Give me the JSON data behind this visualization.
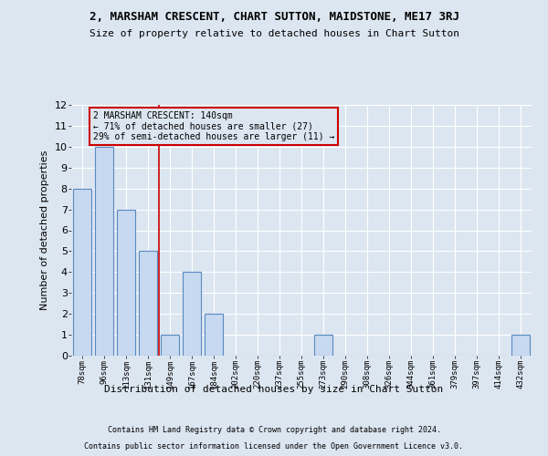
{
  "title": "2, MARSHAM CRESCENT, CHART SUTTON, MAIDSTONE, ME17 3RJ",
  "subtitle": "Size of property relative to detached houses in Chart Sutton",
  "xlabel": "Distribution of detached houses by size in Chart Sutton",
  "ylabel": "Number of detached properties",
  "footer_line1": "Contains HM Land Registry data © Crown copyright and database right 2024.",
  "footer_line2": "Contains public sector information licensed under the Open Government Licence v3.0.",
  "categories": [
    "78sqm",
    "96sqm",
    "113sqm",
    "131sqm",
    "149sqm",
    "167sqm",
    "184sqm",
    "202sqm",
    "220sqm",
    "237sqm",
    "255sqm",
    "273sqm",
    "290sqm",
    "308sqm",
    "326sqm",
    "344sqm",
    "361sqm",
    "379sqm",
    "397sqm",
    "414sqm",
    "432sqm"
  ],
  "values": [
    8,
    10,
    7,
    5,
    1,
    4,
    2,
    0,
    0,
    0,
    0,
    1,
    0,
    0,
    0,
    0,
    0,
    0,
    0,
    0,
    1
  ],
  "bar_color": "#c6d9f0",
  "bar_edge_color": "#5a8abf",
  "background_color": "#dce6f1",
  "grid_color": "#ffffff",
  "annotation_box_text_line1": "2 MARSHAM CRESCENT: 140sqm",
  "annotation_box_text_line2": "← 71% of detached houses are smaller (27)",
  "annotation_box_text_line3": "29% of semi-detached houses are larger (11) →",
  "annotation_box_color": "#cc0000",
  "vline_x_index": 3.5,
  "vline_color": "#cc0000",
  "ylim": [
    0,
    12
  ],
  "yticks": [
    0,
    1,
    2,
    3,
    4,
    5,
    6,
    7,
    8,
    9,
    10,
    11,
    12
  ]
}
